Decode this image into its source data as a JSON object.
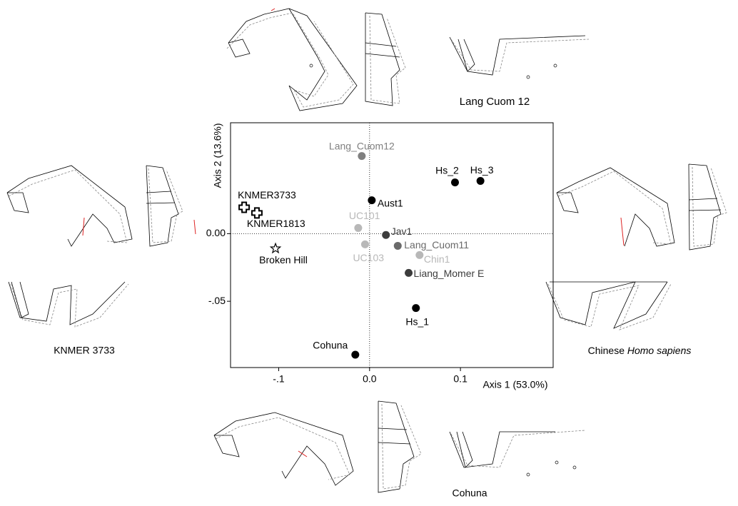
{
  "chart_data": {
    "type": "scatter",
    "x_label": "Axis 1 (53.0%)",
    "y_label": "Axis 2 (13.6%)",
    "xlim": [
      -0.153,
      0.202
    ],
    "ylim": [
      -0.099,
      0.082
    ],
    "xticks": [
      {
        "value": -0.1,
        "label": "-.1"
      },
      {
        "value": 0,
        "label": "0.0"
      },
      0.1
    ],
    "yticks": [
      {
        "value": -0.05,
        "label": "-.05"
      },
      {
        "value": 0,
        "label": "0.00"
      }
    ],
    "zero_lines": true,
    "points": [
      {
        "label": "Lang_Cuom12",
        "x": -0.0086,
        "y": 0.0574,
        "color": "#808080",
        "marker": "circle"
      },
      {
        "label": "Hs_2",
        "x": 0.094,
        "y": 0.0379,
        "color": "#000000",
        "marker": "circle"
      },
      {
        "label": "Hs_3",
        "x": 0.122,
        "y": 0.039,
        "color": "#000000",
        "marker": "circle"
      },
      {
        "label": "Aust1",
        "x": 0.0024,
        "y": 0.0247,
        "color": "#000000",
        "marker": "circle"
      },
      {
        "label": "KNMER3733",
        "x": -0.138,
        "y": 0.0195,
        "color": "#000000",
        "marker": "cross"
      },
      {
        "label": "KNMER1813",
        "x": -0.124,
        "y": 0.0153,
        "color": "#000000",
        "marker": "cross"
      },
      {
        "label": "UC101",
        "x": -0.0125,
        "y": 0.0042,
        "color": "#b8b8b8",
        "marker": "circle"
      },
      {
        "label": "Jav1",
        "x": 0.018,
        "y": -0.001,
        "color": "#3c3c3c",
        "marker": "circle"
      },
      {
        "label": "Lang_Cuom11",
        "x": 0.031,
        "y": -0.009,
        "color": "#6a6a6a",
        "marker": "circle"
      },
      {
        "label": "UC103",
        "x": -0.005,
        "y": -0.0079,
        "color": "#b8b8b8",
        "marker": "circle"
      },
      {
        "label": "Chin1",
        "x": 0.055,
        "y": -0.0158,
        "color": "#b8b8b8",
        "marker": "circle"
      },
      {
        "label": "Broken Hill",
        "x": -0.1035,
        "y": -0.011,
        "color": "#000000",
        "marker": "star"
      },
      {
        "label": "Liang_Momer E",
        "x": 0.043,
        "y": -0.029,
        "color": "#3c3c3c",
        "marker": "circle"
      },
      {
        "label": "Hs_1",
        "x": 0.051,
        "y": -0.055,
        "color": "#000000",
        "marker": "circle"
      },
      {
        "label": "Cohuna",
        "x": -0.0157,
        "y": -0.0895,
        "color": "#000000",
        "marker": "circle"
      }
    ],
    "captions": {
      "top": "Lang Cuom 12",
      "left": "KNMER 3733",
      "right_plain": "Chinese",
      "right_italic": "Homo sapiens",
      "bottom": "Cohuna"
    }
  }
}
